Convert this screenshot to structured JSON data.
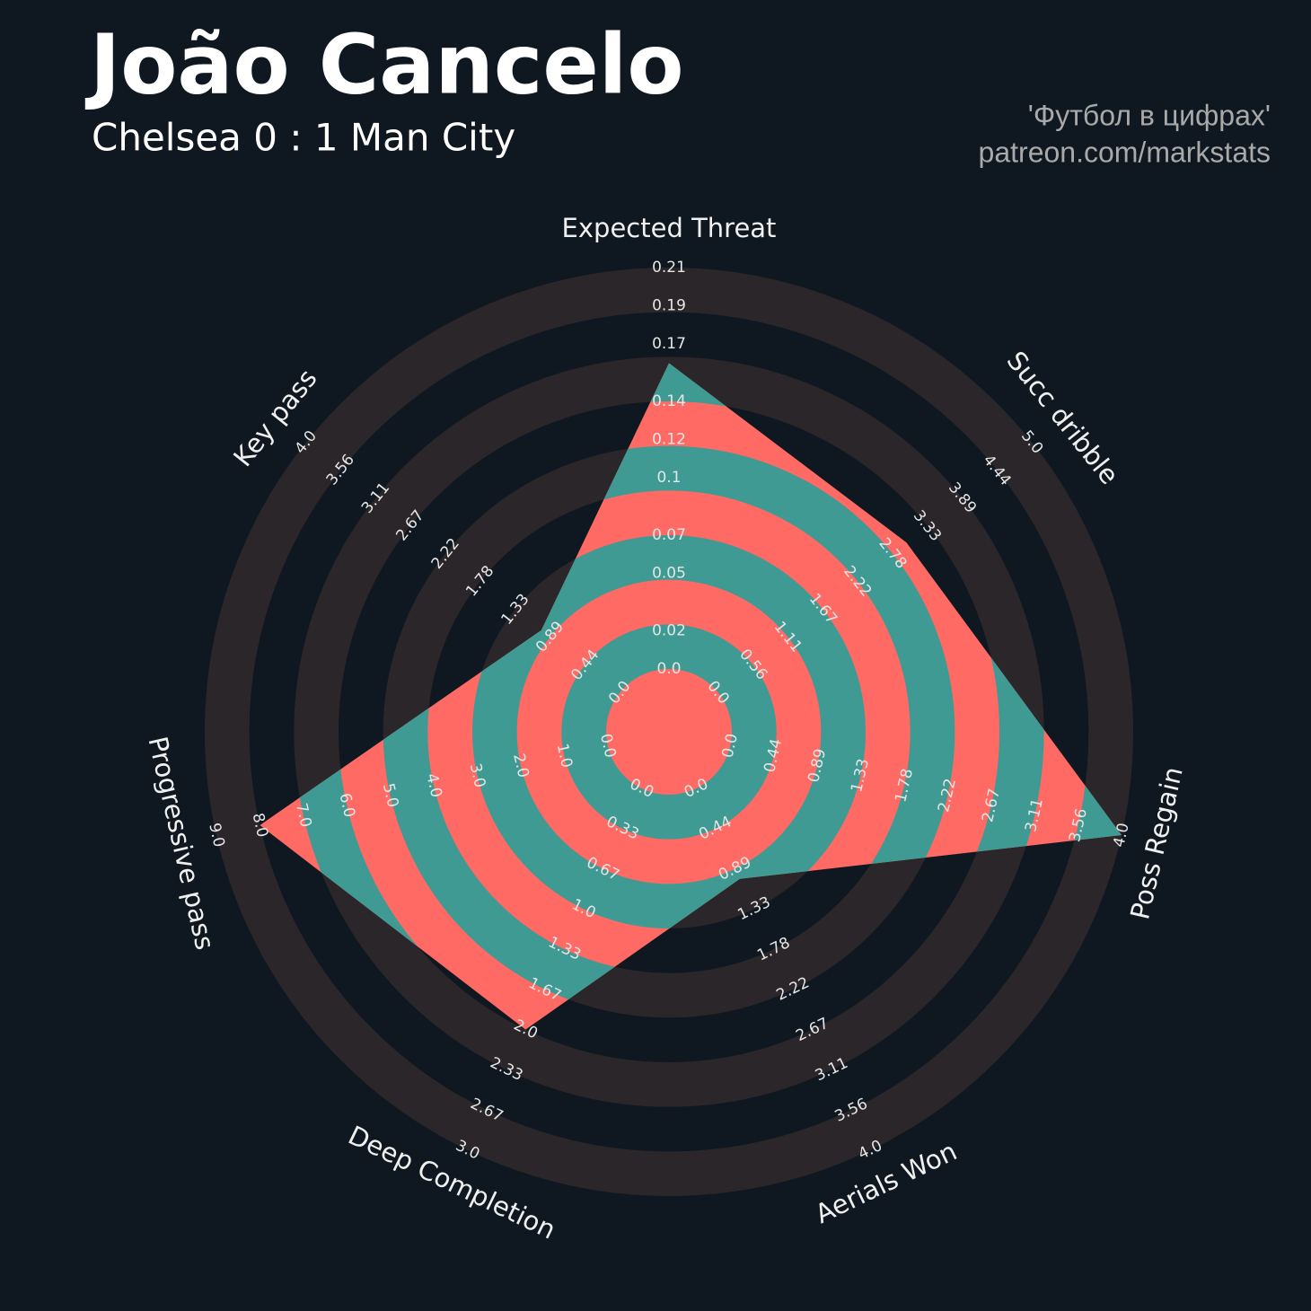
{
  "chart_data": {
    "type": "radar",
    "title": "João Cancelo",
    "subtitle": "Chelsea 0 : 1 Man City",
    "annotations": [
      "'Футбол в цифрах'",
      "patreon.com/markstats"
    ],
    "categories": [
      "Expected Threat",
      "Succ dribble",
      "Poss Regain",
      "Aerials Won",
      "Deep Completion",
      "Progressive pass",
      "Key pass"
    ],
    "values": [
      0.16,
      3.0,
      4.0,
      1.0,
      2.0,
      8.0,
      1.0
    ],
    "axes": [
      {
        "lim": [
          0,
          0.21
        ],
        "ticks": [
          {
            "value": 0,
            "label": "0.0"
          },
          0.02,
          0.05,
          0.07,
          0.1,
          0.12,
          0.14,
          0.17,
          0.19,
          0.21
        ]
      },
      {
        "lim": [
          0,
          5
        ],
        "ticks": [
          {
            "value": 0,
            "label": "0.0"
          },
          0.56,
          1.11,
          1.67,
          2.22,
          2.78,
          3.33,
          3.89,
          4.44,
          {
            "value": 5,
            "label": "5.0"
          }
        ]
      },
      {
        "lim": [
          0,
          4
        ],
        "ticks": [
          {
            "value": 0,
            "label": "0.0"
          },
          0.44,
          0.89,
          1.33,
          1.78,
          2.22,
          2.67,
          3.11,
          3.56,
          {
            "value": 4,
            "label": "4.0"
          }
        ]
      },
      {
        "lim": [
          0,
          4
        ],
        "ticks": [
          {
            "value": 0,
            "label": "0.0"
          },
          0.44,
          0.89,
          1.33,
          1.78,
          2.22,
          2.67,
          3.11,
          3.56,
          {
            "value": 4,
            "label": "4.0"
          }
        ]
      },
      {
        "lim": [
          0,
          3
        ],
        "ticks": [
          {
            "value": 0,
            "label": "0.0"
          },
          0.33,
          0.67,
          {
            "value": 1,
            "label": "1.0"
          },
          1.33,
          1.67,
          {
            "value": 2,
            "label": "2.0"
          },
          2.33,
          2.67,
          {
            "value": 3,
            "label": "3.0"
          }
        ]
      },
      {
        "lim": [
          0,
          9
        ],
        "ticks": [
          {
            "value": 0,
            "label": "0.0"
          },
          {
            "value": 1,
            "label": "1.0"
          },
          {
            "value": 2,
            "label": "2.0"
          },
          {
            "value": 3,
            "label": "3.0"
          },
          {
            "value": 4,
            "label": "4.0"
          },
          {
            "value": 5,
            "label": "5.0"
          },
          {
            "value": 6,
            "label": "6.0"
          },
          {
            "value": 7,
            "label": "7.0"
          },
          {
            "value": 8,
            "label": "8.0"
          },
          {
            "value": 9,
            "label": "9.0"
          }
        ]
      },
      {
        "lim": [
          0,
          4
        ],
        "ticks": [
          {
            "value": 0,
            "label": "0.0"
          },
          0.44,
          0.89,
          1.33,
          1.78,
          2.22,
          2.67,
          3.11,
          3.56,
          {
            "value": 4,
            "label": "4.0"
          }
        ]
      }
    ],
    "fill_colors": [
      "#ff6b64",
      "#3e9a93"
    ],
    "ring_color": "#2a2629",
    "background": "#0f1820"
  }
}
